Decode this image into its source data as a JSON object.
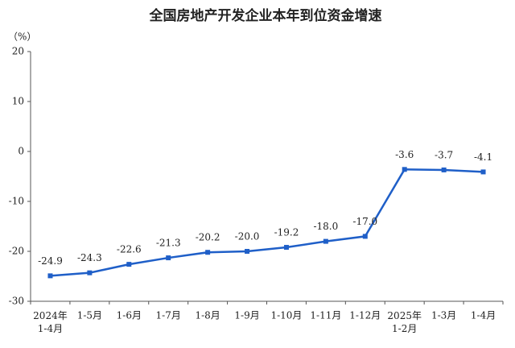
{
  "chart_data": {
    "type": "line",
    "title": "全国房地产开发企业本年到位资金增速",
    "y_unit": "（%）",
    "categories": [
      "2024年\n1-4月",
      "1-5月",
      "1-6月",
      "1-7月",
      "1-8月",
      "1-9月",
      "1-10月",
      "1-11月",
      "1-12月",
      "2025年\n1-2月",
      "1-3月",
      "1-4月"
    ],
    "values": [
      -24.9,
      -24.3,
      -22.6,
      -21.3,
      -20.2,
      -20.0,
      -19.2,
      -18.0,
      -17.0,
      -3.6,
      -3.7,
      -4.1
    ],
    "value_labels": [
      "-24.9",
      "-24.3",
      "-22.6",
      "-21.3",
      "-20.2",
      "-20.0",
      "-19.2",
      "-18.0",
      "-17.0",
      "-3.6",
      "-3.7",
      "-4.1"
    ],
    "color": "#1f5fc8",
    "ylim": [
      -30,
      20
    ],
    "yticks": [
      -30,
      -20,
      -10,
      0,
      10,
      20
    ],
    "grid": false
  }
}
